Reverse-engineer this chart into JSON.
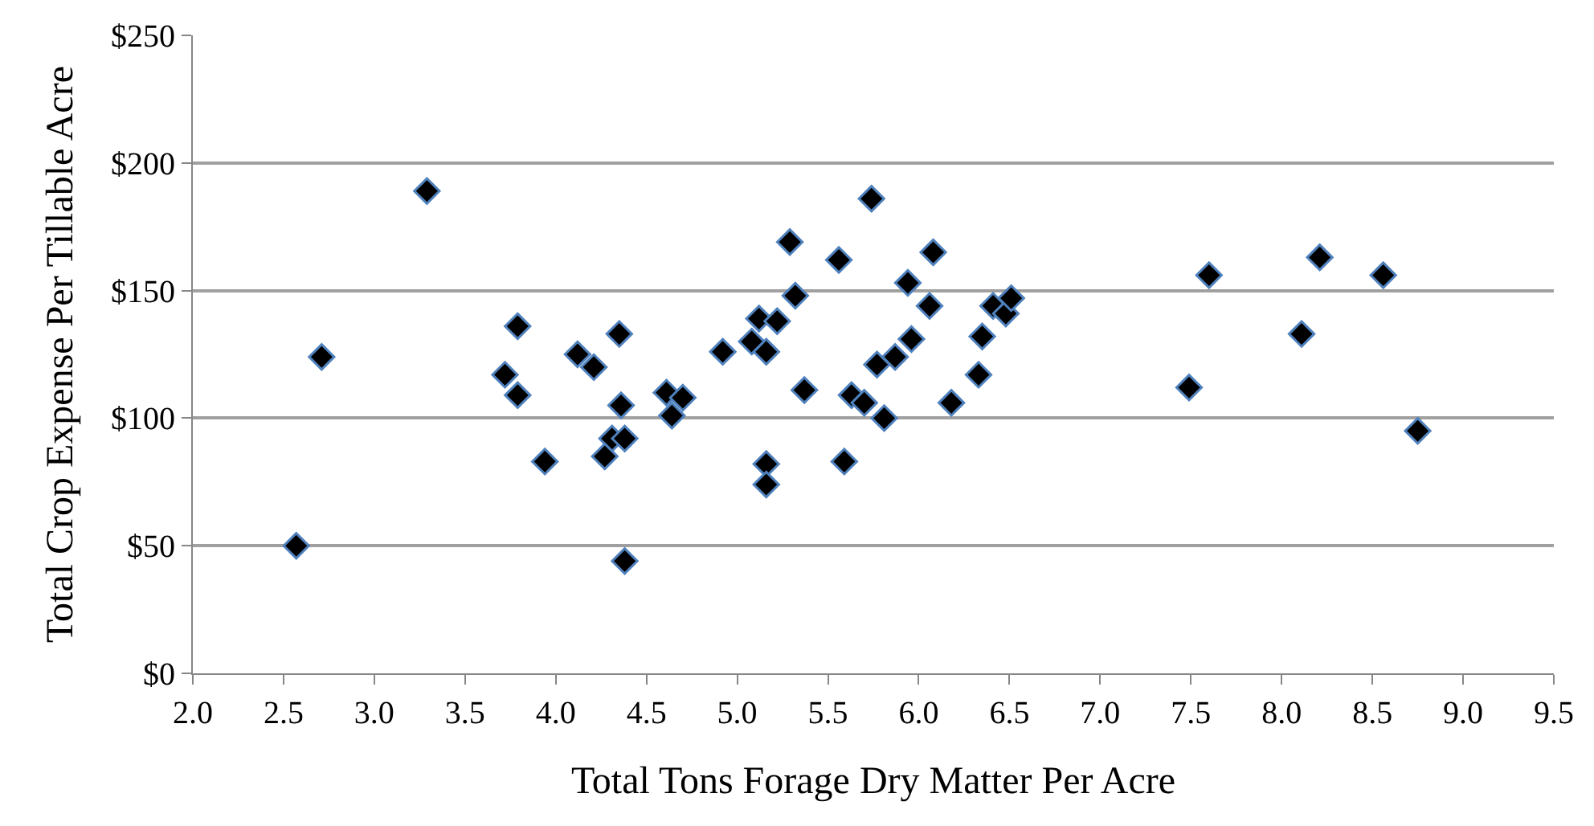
{
  "chart_data": {
    "type": "scatter",
    "xlabel": "Total Tons Forage Dry Matter Per Acre",
    "ylabel": "Total Crop Expense Per Tillable Acre",
    "xlim": [
      2.0,
      9.5
    ],
    "xticks": [
      {
        "value": 2.0,
        "label": "2.0"
      },
      {
        "value": 2.5,
        "label": "2.5"
      },
      {
        "value": 3.0,
        "label": "3.0"
      },
      {
        "value": 3.5,
        "label": "3.5"
      },
      {
        "value": 4.0,
        "label": "4.0"
      },
      {
        "value": 4.5,
        "label": "4.5"
      },
      {
        "value": 5.0,
        "label": "5.0"
      },
      {
        "value": 5.5,
        "label": "5.5"
      },
      {
        "value": 6.0,
        "label": "6.0"
      },
      {
        "value": 6.5,
        "label": "6.5"
      },
      {
        "value": 7.0,
        "label": "7.0"
      },
      {
        "value": 7.5,
        "label": "7.5"
      },
      {
        "value": 8.0,
        "label": "8.0"
      },
      {
        "value": 8.5,
        "label": "8.5"
      },
      {
        "value": 9.0,
        "label": "9.0"
      },
      {
        "value": 9.5,
        "label": "9.5"
      }
    ],
    "ylim": [
      0,
      250
    ],
    "yticks": [
      {
        "value": 0,
        "label": "$0"
      },
      {
        "value": 50,
        "label": "$50"
      },
      {
        "value": 100,
        "label": "$100"
      },
      {
        "value": 150,
        "label": "$150"
      },
      {
        "value": 200,
        "label": "$200"
      },
      {
        "value": 250,
        "label": "$250"
      }
    ],
    "grid": "y",
    "marker": "diamond",
    "series": [
      {
        "color": "#000000",
        "x": [
          3.29,
          2.71,
          2.57,
          3.79,
          3.72,
          3.79,
          3.94,
          4.12,
          4.21,
          4.35,
          4.36,
          4.31,
          4.38,
          4.27,
          4.38,
          4.61,
          4.64,
          4.7,
          4.92,
          5.08,
          5.12,
          5.22,
          5.16,
          5.32,
          5.29,
          5.37,
          5.16,
          5.16,
          5.56,
          5.74,
          5.59,
          5.63,
          5.7,
          5.81,
          5.77,
          5.87,
          5.96,
          5.94,
          6.06,
          6.08,
          6.18,
          6.33,
          6.35,
          6.41,
          6.48,
          6.51,
          7.49,
          7.6,
          8.11,
          8.21,
          8.56,
          8.75
        ],
        "values": [
          189,
          124,
          50,
          136,
          117,
          109,
          83,
          125,
          120,
          133,
          105,
          92,
          92,
          85,
          44,
          110,
          101,
          108,
          126,
          130,
          139,
          138,
          126,
          148,
          169,
          111,
          82,
          74,
          162,
          186,
          83,
          109,
          106,
          100,
          121,
          124,
          131,
          153,
          144,
          165,
          106,
          117,
          132,
          144,
          141,
          147,
          112,
          156,
          133,
          163,
          156,
          95
        ]
      }
    ]
  }
}
